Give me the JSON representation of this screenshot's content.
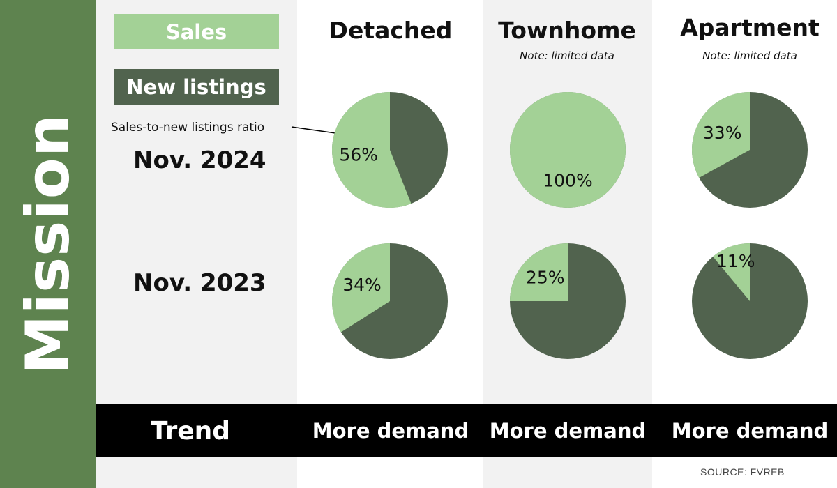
{
  "sidebar": {
    "title": "Mission"
  },
  "legend": {
    "sales_label": "Sales",
    "new_listings_label": "New listings",
    "ratio_label": "Sales-to-new listings ratio"
  },
  "columns": [
    {
      "header": "Detached",
      "note": ""
    },
    {
      "header": "Townhome",
      "note": "Note: limited data"
    },
    {
      "header": "Apartment",
      "note": "Note: limited data"
    }
  ],
  "rows": [
    {
      "label": "Nov. 2024"
    },
    {
      "label": "Nov. 2023"
    }
  ],
  "trend": {
    "label": "Trend",
    "values": [
      "More demand",
      "More demand",
      "More demand"
    ]
  },
  "source": "SOURCE: FVREB",
  "colors": {
    "sidebar": "#5e834f",
    "sales": "#a3d196",
    "new_listings": "#51634e",
    "column_bg": "#f2f2f2",
    "trend_bar": "#000000"
  },
  "chart_data": {
    "type": "pie",
    "series_names": [
      "Sales",
      "New listings"
    ],
    "cells": [
      {
        "period": "Nov. 2024",
        "type": "Detached",
        "ratio_pct": 56,
        "label": "56%"
      },
      {
        "period": "Nov. 2024",
        "type": "Townhome",
        "ratio_pct": 100,
        "label": "100%"
      },
      {
        "period": "Nov. 2024",
        "type": "Apartment",
        "ratio_pct": 33,
        "label": "33%"
      },
      {
        "period": "Nov. 2023",
        "type": "Detached",
        "ratio_pct": 34,
        "label": "34%"
      },
      {
        "period": "Nov. 2023",
        "type": "Townhome",
        "ratio_pct": 25,
        "label": "25%"
      },
      {
        "period": "Nov. 2023",
        "type": "Apartment",
        "ratio_pct": 11,
        "label": "11%"
      }
    ]
  }
}
